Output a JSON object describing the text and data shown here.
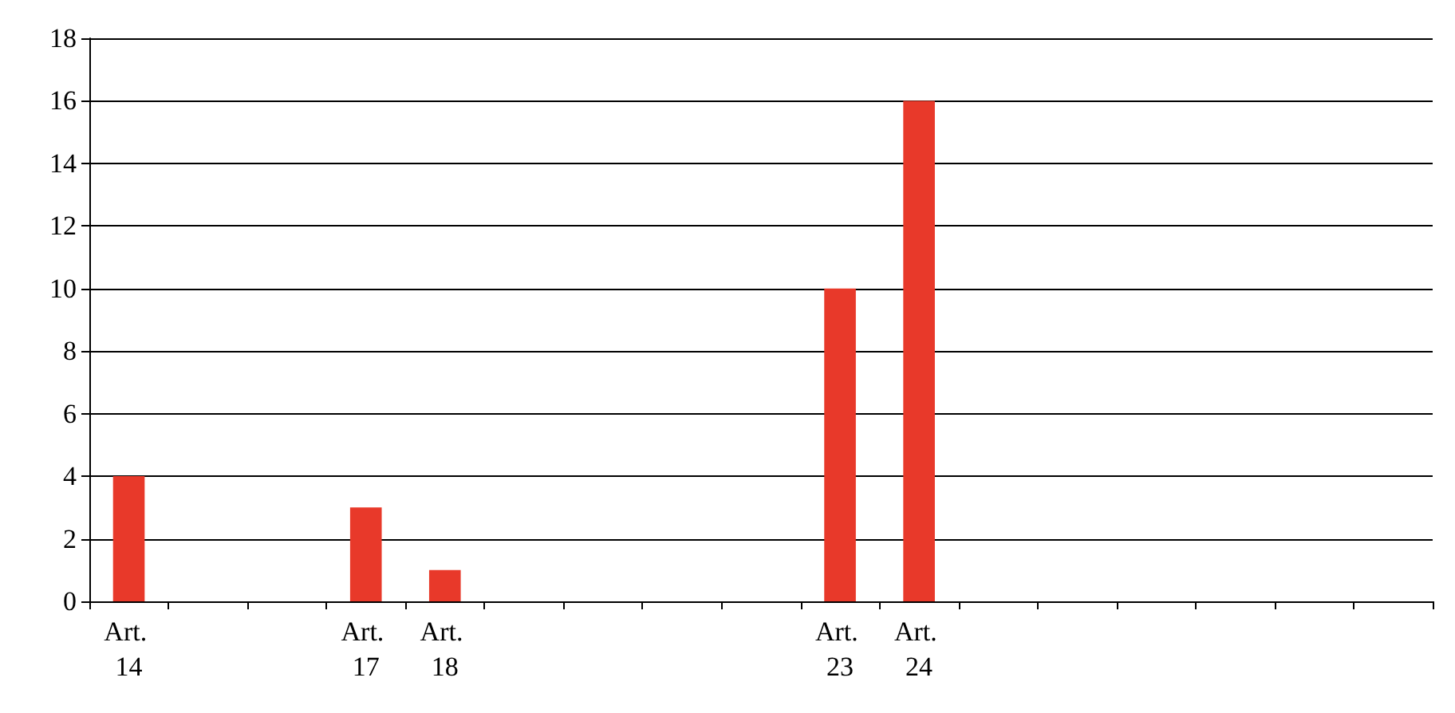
{
  "chart_data": {
    "type": "bar",
    "categories": [
      "Art. 14",
      null,
      null,
      "Art. 17",
      "Art. 18",
      null,
      null,
      null,
      null,
      "Art. 23",
      "Art. 24",
      null,
      null,
      null,
      null,
      null,
      null
    ],
    "values": [
      4,
      null,
      null,
      3,
      1,
      null,
      null,
      null,
      null,
      10,
      16,
      null,
      null,
      null,
      null,
      null,
      null
    ],
    "color": "#e8392a",
    "ylim": [
      0,
      18
    ],
    "yticks": [
      0,
      2,
      4,
      6,
      8,
      10,
      12,
      14,
      16,
      18
    ],
    "grid": "y"
  }
}
